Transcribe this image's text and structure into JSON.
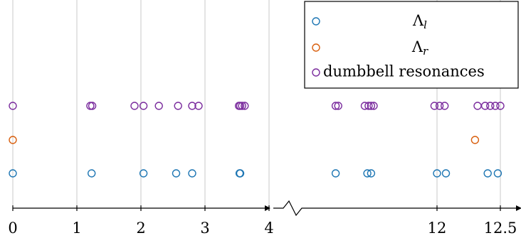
{
  "chart_data": {
    "type": "scatter",
    "title": "",
    "xlabel": "",
    "ylabel": "",
    "axis_break": {
      "between": [
        4,
        11
      ]
    },
    "segments": [
      {
        "xlim": [
          0,
          4
        ]
      },
      {
        "xlim": [
          11,
          12.5
        ]
      }
    ],
    "x_ticks": [
      {
        "value": 0,
        "label": "0"
      },
      {
        "value": 1,
        "label": "1"
      },
      {
        "value": 2,
        "label": "2"
      },
      {
        "value": 3,
        "label": "3"
      },
      {
        "value": 4,
        "label": "4"
      },
      {
        "value": 12,
        "label": "12"
      },
      {
        "value": 12.5,
        "label": "12.5"
      }
    ],
    "grid": true,
    "legend_position": "top-right",
    "series": [
      {
        "name": "Λ_l",
        "color": "#1f77b4",
        "row": 0,
        "x": [
          0,
          1.23,
          2.04,
          2.55,
          2.8,
          3.54,
          3.55,
          11.2,
          11.45,
          11.48,
          12.0,
          12.07,
          12.4,
          12.48
        ]
      },
      {
        "name": "Λ_r",
        "color": "#d95f0e",
        "row": 1,
        "x": [
          0,
          12.3
        ]
      },
      {
        "name": "dumbbell resonances",
        "color": "#7b2d9e",
        "row": 2,
        "x": [
          0,
          1.21,
          1.24,
          1.9,
          2.04,
          2.28,
          2.58,
          2.8,
          2.9,
          3.53,
          3.55,
          3.58,
          3.62,
          11.2,
          11.22,
          11.43,
          11.46,
          11.48,
          11.5,
          11.98,
          12.02,
          12.06,
          12.32,
          12.38,
          12.42,
          12.46,
          12.5
        ]
      }
    ]
  }
}
